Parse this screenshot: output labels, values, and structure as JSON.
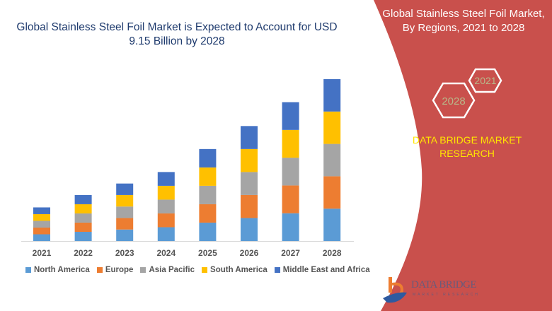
{
  "header": {
    "title": "Global Stainless Steel Foil Market is Expected to Account for USD 9.15 Billion by 2028"
  },
  "panel": {
    "title_line1": "Global Stainless Steel Foil Market,",
    "title_line2": "By Regions, 2021 to 2028",
    "hex_start": "2021",
    "hex_end": "2028",
    "brand_line1": "DATA BRIDGE MARKET",
    "brand_line2": "RESEARCH",
    "logo_text": "DATA BRIDGE",
    "logo_subtext": "MARKET RESEARCH",
    "panel_color": "#C9504C",
    "brand_color": "#FFE600"
  },
  "chart_data": {
    "type": "bar",
    "stacked": true,
    "title": "Global Stainless Steel Foil Market is Expected to Account for USD 9.15 Billion by 2028",
    "categories": [
      "2021",
      "2022",
      "2023",
      "2024",
      "2025",
      "2026",
      "2027",
      "2028"
    ],
    "series": [
      {
        "name": "North America",
        "color": "#5B9BD5",
        "values": [
          0.38,
          0.52,
          0.65,
          0.78,
          1.04,
          1.3,
          1.57,
          1.83
        ]
      },
      {
        "name": "Europe",
        "color": "#ED7D31",
        "values": [
          0.38,
          0.52,
          0.65,
          0.78,
          1.04,
          1.3,
          1.57,
          1.83
        ]
      },
      {
        "name": "Asia Pacific",
        "color": "#A5A5A5",
        "values": [
          0.38,
          0.52,
          0.65,
          0.78,
          1.04,
          1.3,
          1.57,
          1.83
        ]
      },
      {
        "name": "South America",
        "color": "#FFC000",
        "values": [
          0.38,
          0.52,
          0.65,
          0.78,
          1.04,
          1.3,
          1.57,
          1.83
        ]
      },
      {
        "name": "Middle East and Africa",
        "color": "#4472C4",
        "values": [
          0.38,
          0.52,
          0.65,
          0.78,
          1.04,
          1.3,
          1.57,
          1.83
        ]
      }
    ],
    "ylim": [
      0,
      9.15
    ],
    "grid": false,
    "legend": "bottom"
  }
}
